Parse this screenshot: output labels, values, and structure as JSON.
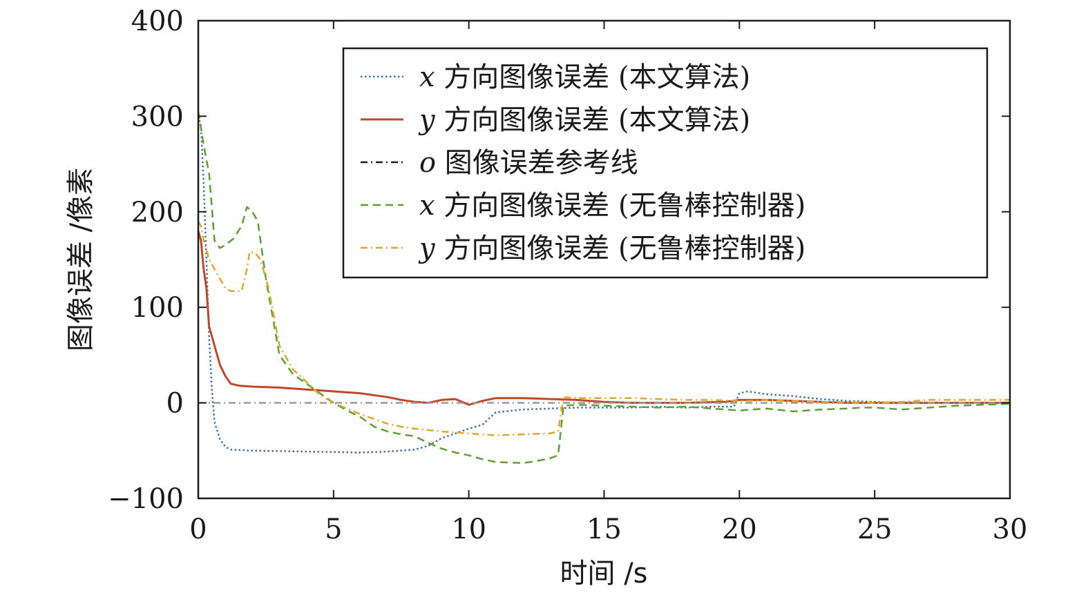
{
  "chart_data": {
    "type": "line",
    "xlabel": "时间 /s",
    "ylabel": "图像误差 /像素",
    "xlim": [
      0,
      30
    ],
    "ylim": [
      -100,
      400
    ],
    "xticks": [
      0,
      5,
      10,
      15,
      20,
      25,
      30
    ],
    "yticks": [
      -100,
      0,
      100,
      200,
      300,
      400
    ],
    "xtick_labels": [
      "0",
      "5",
      "10",
      "15",
      "20",
      "25",
      "30"
    ],
    "ytick_labels": [
      "−100",
      "0",
      "100",
      "200",
      "300",
      "400"
    ],
    "grid": false,
    "legend_position": "top-right",
    "series": [
      {
        "key": "x_ours",
        "var": "x",
        "label_rest": " 方向图像误差 (本文算法)",
        "color": "#3c6fb0",
        "style": "dotted",
        "points": [
          [
            0,
            300
          ],
          [
            0.1,
            290
          ],
          [
            0.2,
            230
          ],
          [
            0.3,
            150
          ],
          [
            0.4,
            70
          ],
          [
            0.5,
            15
          ],
          [
            0.6,
            -20
          ],
          [
            0.8,
            -38
          ],
          [
            1.0,
            -46
          ],
          [
            1.2,
            -49
          ],
          [
            2,
            -50
          ],
          [
            4,
            -51
          ],
          [
            6,
            -52
          ],
          [
            7,
            -51
          ],
          [
            8,
            -49
          ],
          [
            8.5,
            -45
          ],
          [
            9,
            -37
          ],
          [
            9.5,
            -32
          ],
          [
            10,
            -27
          ],
          [
            10.5,
            -23
          ],
          [
            10.8,
            -15
          ],
          [
            11,
            -10
          ],
          [
            12,
            -7
          ],
          [
            13,
            -6
          ],
          [
            14,
            -5
          ],
          [
            15,
            -5
          ],
          [
            16,
            -5
          ],
          [
            17,
            -4
          ],
          [
            18,
            -5
          ],
          [
            19,
            -4
          ],
          [
            19.8,
            -4
          ],
          [
            20,
            10
          ],
          [
            20.3,
            12
          ],
          [
            21,
            9
          ],
          [
            22,
            7
          ],
          [
            23,
            4
          ],
          [
            24,
            2
          ],
          [
            25,
            1
          ],
          [
            26,
            0
          ],
          [
            28,
            0
          ],
          [
            30,
            0
          ]
        ]
      },
      {
        "key": "y_ours",
        "var": "y",
        "label_rest": " 方向图像误差 (本文算法)",
        "color": "#c0472a",
        "style": "solid",
        "points": [
          [
            0,
            180
          ],
          [
            0.1,
            170
          ],
          [
            0.2,
            140
          ],
          [
            0.3,
            120
          ],
          [
            0.4,
            80
          ],
          [
            0.6,
            60
          ],
          [
            0.8,
            40
          ],
          [
            1.0,
            28
          ],
          [
            1.2,
            20
          ],
          [
            1.5,
            18
          ],
          [
            2,
            17
          ],
          [
            3,
            16
          ],
          [
            4,
            14
          ],
          [
            5,
            12
          ],
          [
            6,
            10
          ],
          [
            7,
            6
          ],
          [
            7.5,
            3
          ],
          [
            8,
            1
          ],
          [
            8.5,
            0
          ],
          [
            9,
            3
          ],
          [
            9.5,
            4
          ],
          [
            10,
            -2
          ],
          [
            10.5,
            2
          ],
          [
            11,
            5
          ],
          [
            12,
            5
          ],
          [
            13,
            4
          ],
          [
            14,
            3
          ],
          [
            15,
            1
          ],
          [
            16,
            0
          ],
          [
            18,
            0
          ],
          [
            19.5,
            1
          ],
          [
            20,
            3
          ],
          [
            21,
            3
          ],
          [
            22,
            2
          ],
          [
            23,
            1
          ],
          [
            24,
            0
          ],
          [
            25,
            0
          ],
          [
            26,
            0
          ],
          [
            28,
            0
          ],
          [
            30,
            0
          ]
        ]
      },
      {
        "key": "o_ref",
        "var": "o",
        "label_rest": " 图像误差参考线",
        "color": "#9a9a9a",
        "legend_color": "#1a1a1a",
        "style": "dashdot",
        "points": [
          [
            0,
            0
          ],
          [
            30,
            0
          ]
        ]
      },
      {
        "key": "x_norobust",
        "var": "x",
        "label_rest": " 方向图像误差 (无鲁棒控制器)",
        "color": "#5c9f32",
        "style": "dashed",
        "points": [
          [
            0,
            305
          ],
          [
            0.2,
            270
          ],
          [
            0.4,
            240
          ],
          [
            0.6,
            170
          ],
          [
            0.8,
            162
          ],
          [
            1.0,
            165
          ],
          [
            1.3,
            172
          ],
          [
            1.6,
            185
          ],
          [
            1.8,
            205
          ],
          [
            2.0,
            200
          ],
          [
            2.2,
            190
          ],
          [
            2.5,
            130
          ],
          [
            3,
            50
          ],
          [
            3.5,
            30
          ],
          [
            4,
            20
          ],
          [
            4.5,
            10
          ],
          [
            5,
            0
          ],
          [
            5.5,
            -8
          ],
          [
            6,
            -15
          ],
          [
            6.5,
            -25
          ],
          [
            7,
            -30
          ],
          [
            7.5,
            -33
          ],
          [
            8,
            -35
          ],
          [
            8.5,
            -42
          ],
          [
            9,
            -48
          ],
          [
            9.5,
            -52
          ],
          [
            10,
            -55
          ],
          [
            10.5,
            -59
          ],
          [
            11,
            -62
          ],
          [
            12,
            -63
          ],
          [
            12.5,
            -61
          ],
          [
            13,
            -58
          ],
          [
            13.3,
            -55
          ],
          [
            13.5,
            -3
          ],
          [
            14,
            -2
          ],
          [
            15,
            -3
          ],
          [
            16,
            -4
          ],
          [
            17,
            -5
          ],
          [
            18,
            -4
          ],
          [
            19,
            -6
          ],
          [
            20,
            -8
          ],
          [
            21,
            -6
          ],
          [
            22,
            -9
          ],
          [
            23,
            -7
          ],
          [
            24,
            -6
          ],
          [
            24.5,
            -5
          ],
          [
            25,
            -5
          ],
          [
            26,
            -7
          ],
          [
            27,
            -5
          ],
          [
            28,
            -3
          ],
          [
            29,
            -2
          ],
          [
            30,
            -1
          ]
        ]
      },
      {
        "key": "y_norobust",
        "var": "y",
        "label_rest": " 方向图像误差 (无鲁棒控制器)",
        "color": "#e0a628",
        "style": "dashdot",
        "points": [
          [
            0,
            190
          ],
          [
            0.1,
            185
          ],
          [
            0.2,
            170
          ],
          [
            0.3,
            160
          ],
          [
            0.4,
            150
          ],
          [
            0.6,
            140
          ],
          [
            0.8,
            130
          ],
          [
            1.0,
            120
          ],
          [
            1.2,
            117
          ],
          [
            1.6,
            117
          ],
          [
            1.8,
            140
          ],
          [
            1.9,
            158
          ],
          [
            2.1,
            157
          ],
          [
            2.3,
            150
          ],
          [
            2.6,
            120
          ],
          [
            3,
            60
          ],
          [
            3.5,
            35
          ],
          [
            4,
            22
          ],
          [
            4.5,
            8
          ],
          [
            5,
            0
          ],
          [
            5.5,
            -6
          ],
          [
            6,
            -12
          ],
          [
            6.5,
            -17
          ],
          [
            7,
            -22
          ],
          [
            7.5,
            -25
          ],
          [
            8,
            -27
          ],
          [
            9,
            -30
          ],
          [
            10,
            -32
          ],
          [
            11,
            -34
          ],
          [
            12,
            -33
          ],
          [
            13,
            -32
          ],
          [
            13.3,
            -30
          ],
          [
            13.5,
            6
          ],
          [
            14,
            5
          ],
          [
            15,
            5
          ],
          [
            16,
            5
          ],
          [
            17,
            4
          ],
          [
            18,
            3
          ],
          [
            19,
            3
          ],
          [
            20,
            2
          ],
          [
            20.3,
            2
          ],
          [
            21,
            3
          ],
          [
            22,
            2
          ],
          [
            23,
            1
          ],
          [
            24,
            1
          ],
          [
            25,
            0
          ],
          [
            26,
            1
          ],
          [
            26.5,
            2
          ],
          [
            27,
            3
          ],
          [
            28,
            3
          ],
          [
            29,
            3
          ],
          [
            30,
            3
          ]
        ]
      }
    ]
  }
}
